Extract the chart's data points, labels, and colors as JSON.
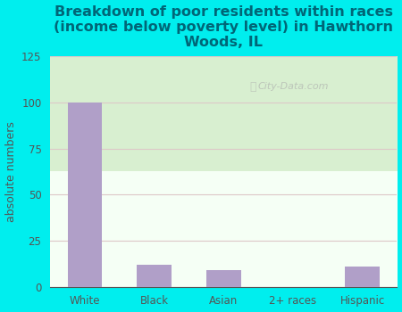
{
  "title": "Breakdown of poor residents within races\n(income below poverty level) in Hawthorn\nWoods, IL",
  "categories": [
    "White",
    "Black",
    "Asian",
    "2+ races",
    "Hispanic"
  ],
  "values": [
    100,
    12,
    9,
    0,
    11
  ],
  "bar_color": "#b09fc8",
  "ylabel": "absolute numbers",
  "ylim": [
    0,
    125
  ],
  "yticks": [
    0,
    25,
    50,
    75,
    100,
    125
  ],
  "bg_outer": "#00eeee",
  "bg_plot": "#e8f5e0",
  "title_color": "#006677",
  "axis_color": "#555555",
  "grid_color": "#ddc8c8",
  "watermark": "City-Data.com",
  "title_fontsize": 11.5,
  "ylabel_fontsize": 9,
  "tick_fontsize": 8.5
}
